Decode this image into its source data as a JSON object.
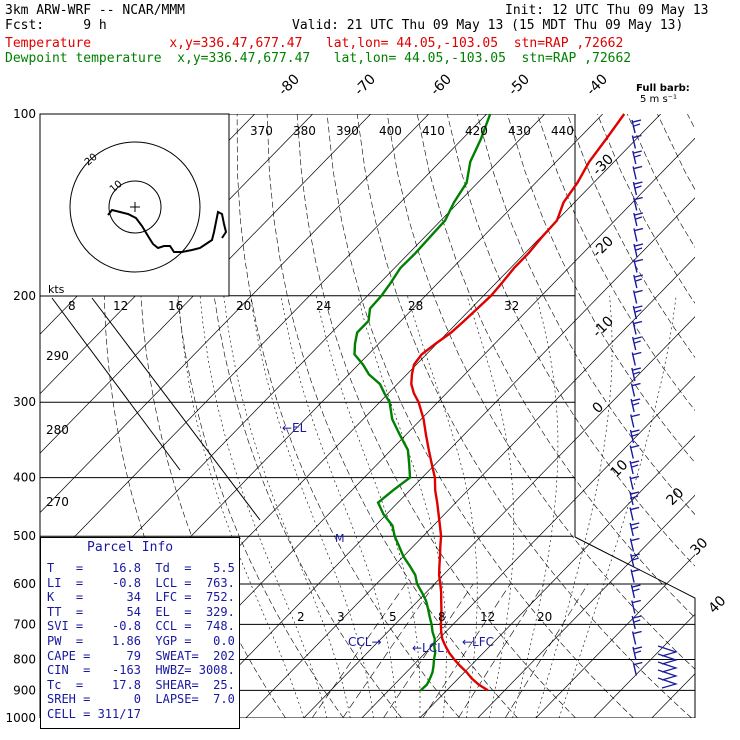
{
  "header": {
    "model": "3km ARW-WRF -- NCAR/MMM",
    "init": "Init: 12 UTC Thu 09 May 13",
    "fcst": "Fcst:     9 h",
    "valid": "Valid: 21 UTC Thu 09 May 13 (15 MDT Thu 09 May 13)",
    "temp_line": "Temperature          x,y=336.47,677.47   lat,lon= 44.05,-103.05  stn=RAP ,72662",
    "dew_line": "Dewpoint temperature  x,y=336.47,677.47   lat,lon= 44.05,-103.05  stn=RAP ,72662"
  },
  "colors": {
    "temperature": "#e00000",
    "dewpoint": "#008000",
    "wind": "#1818a0",
    "hodograph": "#000000"
  },
  "barb_legend": {
    "line1": "Full barb:",
    "line2": "5 m s⁻¹"
  },
  "parcel": {
    "title": "Parcel Info",
    "rows": [
      "T   =    16.8  Td  =   5.5",
      "LI  =    -0.8  LCL =  763.",
      "K   =      34  LFC =  752.",
      "TT  =      54  EL  =  329.",
      "SVI =    -0.8  CCL =  748.",
      "PW  =    1.86  YGP =   0.0",
      "CAPE =     79  SWEAT=  202",
      "CIN  =   -163  HWBZ= 3008.",
      "Tc  =    17.8  SHEAR=  25.",
      "SREH =      0  LAPSE=  7.0",
      "CELL = 311/17"
    ]
  },
  "chart_data": {
    "type": "line",
    "title": "",
    "y_axis": "pressure (hPa)",
    "pressure_ticks": [
      "100",
      "200",
      "300",
      "400",
      "500",
      "600",
      "700",
      "800",
      "900",
      "1000"
    ],
    "isotherm_labels": [
      "-80",
      "-70",
      "-60",
      "-50",
      "-40",
      "-30",
      "-20",
      "-10",
      "0",
      "10",
      "20",
      "30",
      "40"
    ],
    "theta_labels": [
      "370",
      "380",
      "390",
      "400",
      "410",
      "420",
      "430",
      "440"
    ],
    "mixing_ratio_labels": [
      "2",
      "3",
      "5",
      "8",
      "12",
      "20"
    ],
    "other_labels": [
      "290",
      "280",
      "270"
    ],
    "hodo_speed_labels": [
      "8",
      "12",
      "16",
      "20",
      "24",
      "28",
      "32"
    ],
    "hodo_units": "kts",
    "hodo_rings": [
      "10",
      "20"
    ],
    "series": [
      {
        "name": "Temperature",
        "p": [
          900,
          880,
          860,
          840,
          820,
          800,
          780,
          760,
          740,
          720,
          700,
          680,
          660,
          640,
          620,
          600,
          580,
          560,
          540,
          520,
          500,
          480,
          460,
          440,
          420,
          400,
          380,
          360,
          340,
          320,
          300,
          290,
          280,
          270,
          260,
          250,
          240,
          230,
          220,
          210,
          200,
          190,
          180,
          170,
          160,
          150,
          140,
          130,
          120,
          110,
          100
        ],
        "t": [
          17.1,
          14.5,
          12.3,
          10.4,
          8.2,
          6.1,
          4.1,
          2.3,
          0.6,
          -0.8,
          -2.1,
          -3.3,
          -4.6,
          -6.0,
          -7.4,
          -9.0,
          -10.7,
          -12.2,
          -13.7,
          -15.3,
          -16.9,
          -18.9,
          -21.0,
          -23.2,
          -25.6,
          -27.8,
          -30.6,
          -33.5,
          -36.5,
          -39.6,
          -43.3,
          -45.6,
          -47.6,
          -49.1,
          -50.4,
          -50.8,
          -50.2,
          -49.4,
          -49.1,
          -48.9,
          -48.7,
          -49.0,
          -49.4,
          -49.4,
          -49.8,
          -50.0,
          -51.9,
          -52.8,
          -54.3,
          -55.2,
          -56.3
        ]
      },
      {
        "name": "Dewpoint temperature",
        "p": [
          900,
          880,
          860,
          840,
          820,
          800,
          780,
          760,
          740,
          720,
          700,
          680,
          660,
          640,
          620,
          600,
          580,
          560,
          540,
          520,
          500,
          480,
          460,
          440,
          420,
          400,
          380,
          360,
          340,
          320,
          300,
          290,
          280,
          270,
          260,
          250,
          240,
          230,
          220,
          210,
          200,
          190,
          180,
          170,
          160,
          150,
          140,
          130,
          120,
          110,
          100
        ],
        "t": [
          5.5,
          5.6,
          5.1,
          4.5,
          3.6,
          2.6,
          1.7,
          0.4,
          -0.7,
          -2.3,
          -3.7,
          -5.3,
          -6.9,
          -8.6,
          -10.7,
          -13.0,
          -14.8,
          -17.3,
          -20.0,
          -22.4,
          -24.9,
          -27.1,
          -30.5,
          -33.4,
          -32.9,
          -32.1,
          -34.5,
          -37.1,
          -41.0,
          -45.0,
          -48.3,
          -50.7,
          -53.0,
          -56.5,
          -59.2,
          -62.4,
          -64.1,
          -65.6,
          -65.6,
          -67.4,
          -67.6,
          -68.2,
          -69.0,
          -68.9,
          -69.1,
          -69.3,
          -70.8,
          -71.9,
          -74.8,
          -76.8,
          -79.4
        ]
      }
    ],
    "annotations": [
      "EL",
      "LCL",
      "LFC",
      "CCL",
      "M"
    ]
  }
}
